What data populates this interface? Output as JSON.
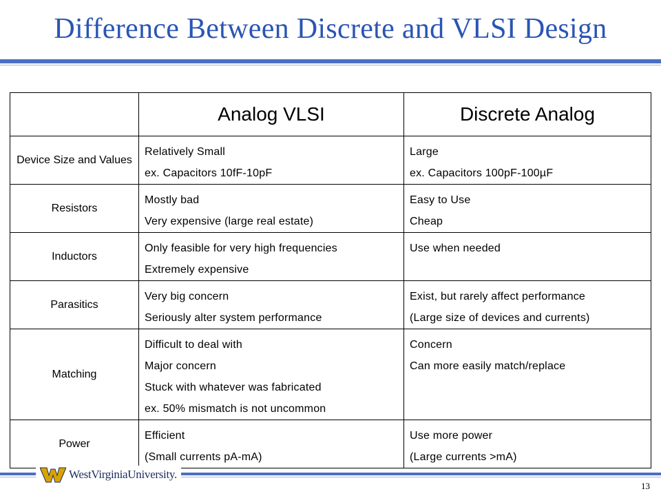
{
  "slide": {
    "title": "Difference Between Discrete and VLSI Design",
    "page_number": "13",
    "logo_text": "WestVirginiaUniversity."
  },
  "table": {
    "headers": [
      "",
      "Analog VLSI",
      "Discrete Analog"
    ],
    "rows": [
      {
        "label": "Device Size and Values",
        "vlsi": [
          "Relatively Small",
          "ex. Capacitors 10fF-10pF"
        ],
        "discrete": [
          "Large",
          "ex. Capacitors 100pF-100µF"
        ]
      },
      {
        "label": "Resistors",
        "vlsi": [
          "Mostly bad",
          "Very expensive (large real estate)"
        ],
        "discrete": [
          "Easy to Use",
          "Cheap"
        ]
      },
      {
        "label": "Inductors",
        "vlsi": [
          "Only feasible for very high frequencies",
          "Extremely expensive"
        ],
        "discrete": [
          "Use when needed"
        ]
      },
      {
        "label": "Parasitics",
        "vlsi": [
          "Very big concern",
          "Seriously alter system performance"
        ],
        "discrete": [
          "Exist, but rarely affect performance",
          "(Large size of devices and currents)"
        ]
      },
      {
        "label": "Matching",
        "vlsi": [
          "Difficult to deal with",
          "Major concern",
          "Stuck with whatever was fabricated",
          "ex. 50% mismatch is not uncommon"
        ],
        "discrete": [
          "Concern",
          "Can more easily match/replace"
        ]
      },
      {
        "label": "Power",
        "vlsi": [
          "Efficient",
          "(Small currents pA-mA)"
        ],
        "discrete": [
          "Use more power",
          "(Large currents >mA)"
        ]
      }
    ]
  },
  "colors": {
    "title": "#2a55b4",
    "rule": "#4a6fc4",
    "logo_gold": "#d9a300",
    "logo_navy": "#1b2d5e"
  }
}
